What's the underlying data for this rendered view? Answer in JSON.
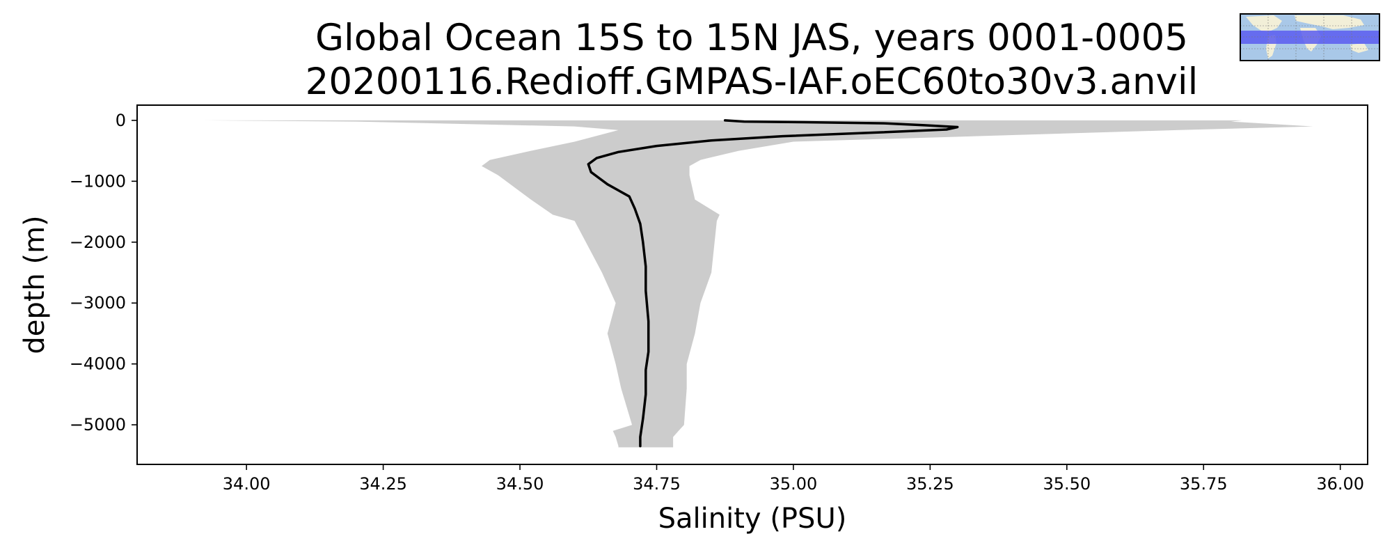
{
  "chart_data": {
    "type": "area",
    "title": "Global Ocean 15S to 15N JAS, years 0001-0005",
    "subtitle": "20200116.Redioff.GMPAS-IAF.oEC60to30v3.anvil",
    "xlabel": "Salinity (PSU)",
    "ylabel": "depth (m)",
    "xlim": [
      33.8,
      36.05
    ],
    "ylim": [
      -5650,
      250
    ],
    "xticks": [
      "34.00",
      "34.25",
      "34.50",
      "34.75",
      "35.00",
      "35.25",
      "35.50",
      "35.75",
      "36.00"
    ],
    "yticks": [
      "0",
      "−1000",
      "−2000",
      "−3000",
      "−4000",
      "−5000"
    ],
    "grid": false,
    "series": [
      {
        "kind": "line",
        "color": "#000000",
        "x": [
          34.875,
          34.91,
          35.02,
          35.17,
          35.24,
          35.3,
          35.28,
          35.15,
          34.98,
          34.85,
          34.75,
          34.68,
          34.64,
          34.625,
          34.63,
          34.66,
          34.7,
          34.71,
          34.72,
          34.725,
          34.73,
          34.73,
          34.735,
          34.735,
          34.73,
          34.73,
          34.725,
          34.72,
          34.72
        ],
        "y": [
          0,
          -20,
          -30,
          -50,
          -80,
          -110,
          -150,
          -200,
          -260,
          -330,
          -420,
          -520,
          -620,
          -720,
          -850,
          -1050,
          -1250,
          -1450,
          -1700,
          -2000,
          -2400,
          -2800,
          -3300,
          -3800,
          -4100,
          -4500,
          -4900,
          -5200,
          -5350
        ]
      },
      {
        "kind": "band",
        "color": "#cccccc",
        "x_lower": [
          33.92,
          34.2,
          34.6,
          34.68,
          34.6,
          34.52,
          34.445,
          34.43,
          34.46,
          34.52,
          34.56,
          34.6,
          34.65,
          34.675,
          34.66,
          34.675,
          34.685,
          34.705,
          34.67,
          34.675,
          34.68,
          34.68
        ],
        "x_upper": [
          35.82,
          35.8,
          35.95,
          35.7,
          35.0,
          34.9,
          34.83,
          34.81,
          34.81,
          34.82,
          34.865,
          34.86,
          34.85,
          34.83,
          34.82,
          34.805,
          34.805,
          34.8,
          34.79,
          34.78,
          34.78,
          34.78
        ],
        "y": [
          0,
          -20,
          -100,
          -160,
          -350,
          -500,
          -650,
          -750,
          -900,
          -1300,
          -1550,
          -1650,
          -2500,
          -3000,
          -3500,
          -4000,
          -4400,
          -5000,
          -5100,
          -5200,
          -5350,
          -5370
        ]
      }
    ],
    "inset_map": {
      "description_shown": "world map with highlighted tropical band",
      "land_color": "#f2efd8",
      "ocean_color": "#a9c8e8",
      "highlight_color": "#5b5cf0"
    }
  }
}
